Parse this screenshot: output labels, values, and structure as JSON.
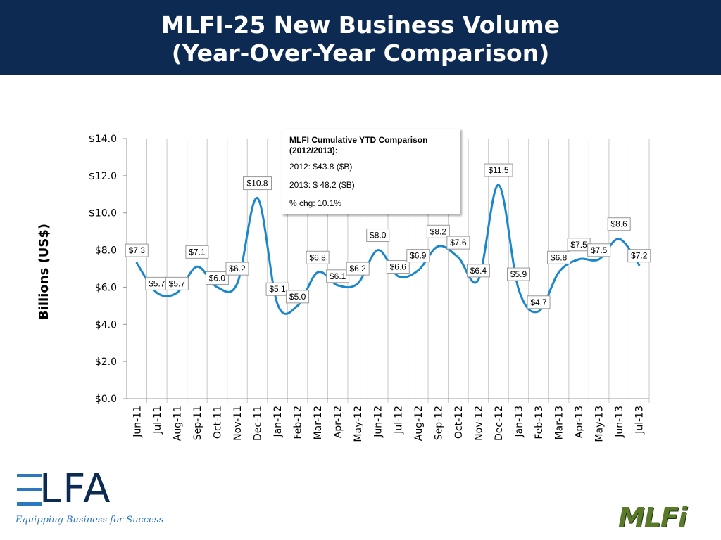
{
  "header": {
    "title_line1": "MLFI-25 New Business Volume",
    "title_line2": "(Year-Over-Year Comparison)"
  },
  "colors": {
    "header_bg": "#0d2a52",
    "line": "#1a87cc",
    "grid": "#c8c8c8"
  },
  "chart_data": {
    "type": "line",
    "title": "MLFI-25 New Business Volume (Year-Over-Year Comparison)",
    "ylabel": "Billions (US$)",
    "ylim": [
      0,
      14
    ],
    "yticks": [
      "$0.0",
      "$2.0",
      "$4.0",
      "$6.0",
      "$8.0",
      "$10.0",
      "$12.0",
      "$14.0"
    ],
    "grid": "vertical",
    "categories": [
      "Jun-11",
      "Jul-11",
      "Aug-11",
      "Sep-11",
      "Oct-11",
      "Nov-11",
      "Dec-11",
      "Jan-12",
      "Feb-12",
      "Mar-12",
      "Apr-12",
      "May-12",
      "Jun-12",
      "Jul-12",
      "Aug-12",
      "Sep-12",
      "Oct-12",
      "Nov-12",
      "Dec-12",
      "Jan-13",
      "Feb-13",
      "Mar-13",
      "Apr-13",
      "May-13",
      "Jun-13",
      "Jul-13"
    ],
    "series": [
      {
        "values": [
          7.3,
          5.7,
          5.7,
          7.1,
          6.0,
          6.2,
          10.8,
          5.1,
          5.0,
          6.8,
          6.1,
          6.2,
          8.0,
          6.6,
          6.9,
          8.2,
          7.6,
          6.4,
          11.5,
          5.9,
          4.7,
          6.8,
          7.5,
          7.5,
          8.6,
          7.2
        ],
        "labels": [
          "$7.3",
          "$5.7",
          "$5.7",
          "$7.1",
          "$6.0",
          "$6.2",
          "$10.8",
          "$5.1",
          "$5.0",
          "$6.8",
          "$6.1",
          "$6.2",
          "$8.0",
          "$6.6",
          "$6.9",
          "$8.2",
          "$7.6",
          "$6.4",
          "$11.5",
          "$5.9",
          "$4.7",
          "$6.8",
          "$7.5",
          "$7.5",
          "$8.6",
          "$7.2"
        ]
      }
    ],
    "annotation": {
      "title": "MLFI Cumulative YTD Comparison (2012/2013):",
      "lines": [
        "2012: $43.8 ($B)",
        "2013: $ 48.2  ($B)",
        "% chg: 10.1%"
      ]
    }
  },
  "logos": {
    "elfa_text": "LFA",
    "elfa_tagline": "Equipping Business for Success",
    "mlfi_text": "MLFi"
  }
}
